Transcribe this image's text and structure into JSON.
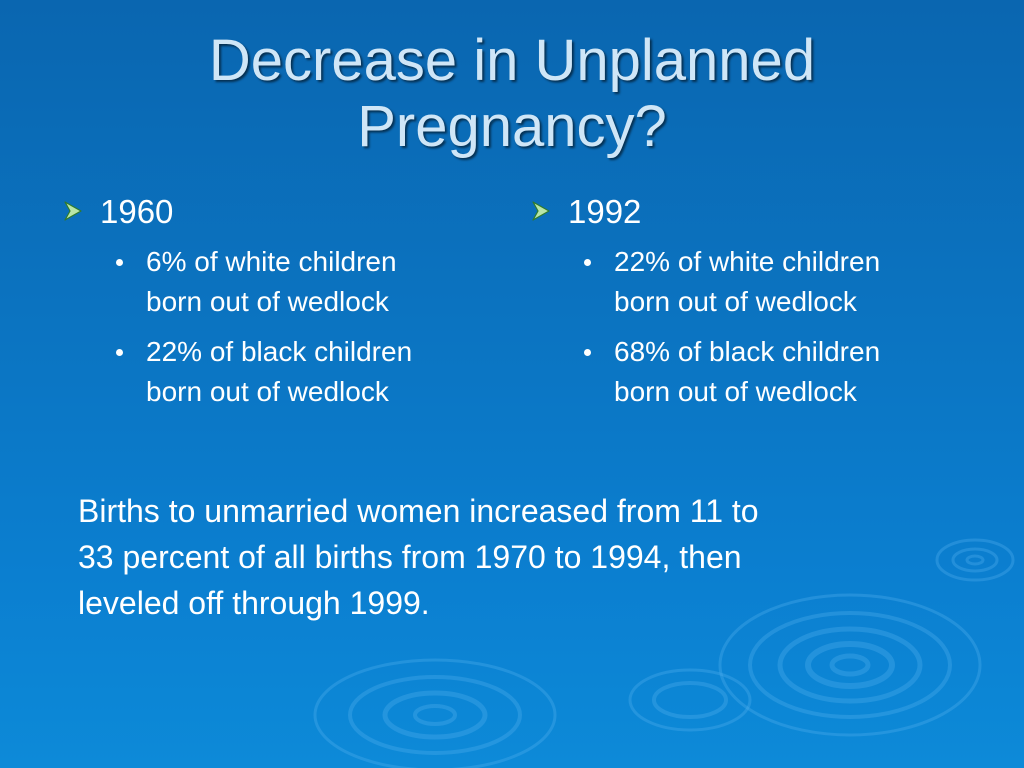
{
  "slide": {
    "title_line1": "Decrease in Unplanned",
    "title_line2": "Pregnancy?",
    "columns": [
      {
        "year": "1960",
        "items": [
          {
            "line1": "6% of white children",
            "line2": "born out of wedlock"
          },
          {
            "line1": "22% of black children",
            "line2": "born out of wedlock"
          }
        ]
      },
      {
        "year": "1992",
        "items": [
          {
            "line1": "22% of white children",
            "line2": "born out of wedlock"
          },
          {
            "line1": "68% of black children",
            "line2": "born out of wedlock"
          }
        ]
      }
    ],
    "summary_line1": "Births to unmarried women increased from 11 to",
    "summary_line2": "33 percent of all births from 1970 to 1994, then",
    "summary_line3": "leveled off through 1999."
  },
  "colors": {
    "background_top": "#0a66b0",
    "background_bottom": "#0d8ad8",
    "title_text": "#cfe6f7",
    "body_text": "#ffffff",
    "arrow_bullet": "#b8e6a8"
  },
  "icons": {
    "level1_bullet": "arrow-bullet-icon",
    "level2_bullet": "dot-bullet-icon",
    "background": "water-ripple-decoration"
  }
}
